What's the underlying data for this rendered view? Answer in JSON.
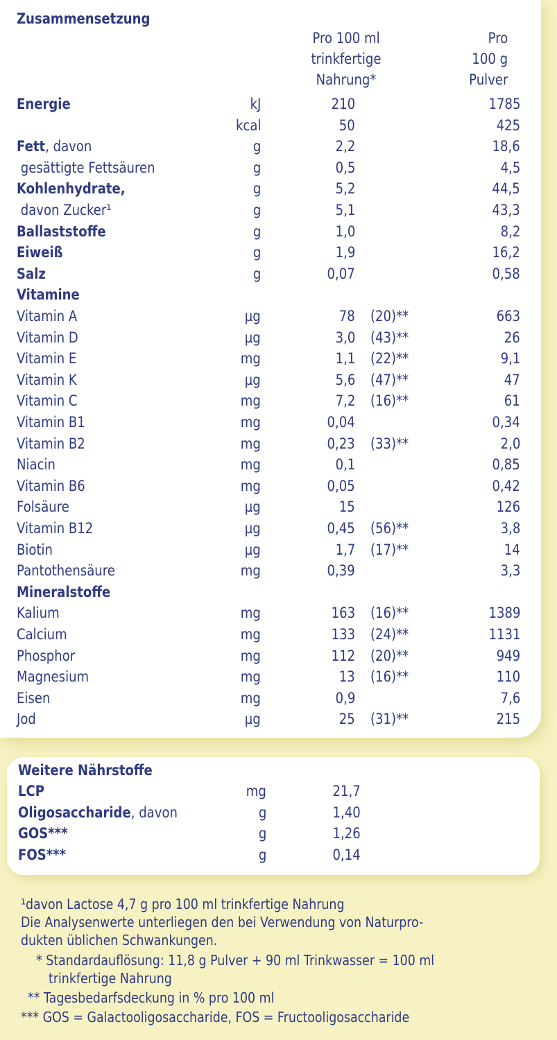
{
  "title": "Zusammensetzung",
  "columns": {
    "per_100ml": [
      "Pro 100 ml",
      "trinkfertige",
      "Nahrung*"
    ],
    "per_100g": [
      "Pro",
      "100 g",
      "Pulver"
    ]
  },
  "rows": [
    {
      "label": "Energie",
      "bold": "Energie",
      "rest": "",
      "unit": "kJ",
      "v1": "210",
      "pct": "",
      "v2": "1785"
    },
    {
      "label": "",
      "bold": "",
      "rest": "",
      "unit": "kcal",
      "v1": "50",
      "pct": "",
      "v2": "425"
    },
    {
      "label": "Fett, davon",
      "bold": "Fett",
      "rest": ", davon",
      "unit": "g",
      "v1": "2,2",
      "pct": "",
      "v2": "18,6"
    },
    {
      "label": "gesättigte Fettsäuren",
      "bold": "",
      "rest": " gesättigte Fettsäuren",
      "unit": "g",
      "v1": "0,5",
      "pct": "",
      "v2": "4,5"
    },
    {
      "label": "Kohlenhydrate,",
      "bold": "Kohlenhydrate,",
      "rest": "",
      "unit": "g",
      "v1": "5,2",
      "pct": "",
      "v2": "44,5"
    },
    {
      "label": "davon Zucker¹",
      "bold": "",
      "rest": " davon Zucker¹",
      "unit": "g",
      "v1": "5,1",
      "pct": "",
      "v2": "43,3"
    },
    {
      "label": "Ballaststoffe",
      "bold": "Ballaststoffe",
      "rest": "",
      "unit": "g",
      "v1": "1,0",
      "pct": "",
      "v2": "8,2"
    },
    {
      "label": "Eiweiß",
      "bold": "Eiweiß",
      "rest": "",
      "unit": "g",
      "v1": "1,9",
      "pct": "",
      "v2": "16,2"
    },
    {
      "label": "Salz",
      "bold": "Salz",
      "rest": "",
      "unit": "g",
      "v1": "0,07",
      "pct": "",
      "v2": "0,58"
    },
    {
      "label": "Vitamine",
      "bold": "Vitamine",
      "rest": "",
      "unit": "",
      "v1": "",
      "pct": "",
      "v2": ""
    },
    {
      "label": "Vitamin A",
      "bold": "",
      "rest": "Vitamin A",
      "unit": "µg",
      "v1": "78",
      "pct": "(20)**",
      "v2": "663"
    },
    {
      "label": "Vitamin D",
      "bold": "",
      "rest": "Vitamin D",
      "unit": "µg",
      "v1": "3,0",
      "pct": "(43)**",
      "v2": "26"
    },
    {
      "label": "Vitamin E",
      "bold": "",
      "rest": "Vitamin E",
      "unit": "mg",
      "v1": "1,1",
      "pct": "(22)**",
      "v2": "9,1"
    },
    {
      "label": "Vitamin K",
      "bold": "",
      "rest": "Vitamin K",
      "unit": "µg",
      "v1": "5,6",
      "pct": "(47)**",
      "v2": "47"
    },
    {
      "label": "Vitamin C",
      "bold": "",
      "rest": "Vitamin C",
      "unit": "mg",
      "v1": "7,2",
      "pct": "(16)**",
      "v2": "61"
    },
    {
      "label": "Vitamin B1",
      "bold": "",
      "rest": "Vitamin B1",
      "unit": "mg",
      "v1": "0,04",
      "pct": "",
      "v2": "0,34"
    },
    {
      "label": "Vitamin B2",
      "bold": "",
      "rest": "Vitamin B2",
      "unit": "mg",
      "v1": "0,23",
      "pct": "(33)**",
      "v2": "2,0"
    },
    {
      "label": "Niacin",
      "bold": "",
      "rest": "Niacin",
      "unit": "mg",
      "v1": "0,1",
      "pct": "",
      "v2": "0,85"
    },
    {
      "label": "Vitamin B6",
      "bold": "",
      "rest": "Vitamin B6",
      "unit": "mg",
      "v1": "0,05",
      "pct": "",
      "v2": "0,42"
    },
    {
      "label": "Folsäure",
      "bold": "",
      "rest": "Folsäure",
      "unit": "µg",
      "v1": "15",
      "pct": "",
      "v2": "126"
    },
    {
      "label": "Vitamin B12",
      "bold": "",
      "rest": "Vitamin B12",
      "unit": "µg",
      "v1": "0,45",
      "pct": "(56)**",
      "v2": "3,8"
    },
    {
      "label": "Biotin",
      "bold": "",
      "rest": "Biotin",
      "unit": "µg",
      "v1": "1,7",
      "pct": "(17)**",
      "v2": "14"
    },
    {
      "label": "Pantothensäure",
      "bold": "",
      "rest": "Pantothensäure",
      "unit": "mg",
      "v1": "0,39",
      "pct": "",
      "v2": "3,3"
    },
    {
      "label": "Mineralstoffe",
      "bold": "Mineralstoffe",
      "rest": "",
      "unit": "",
      "v1": "",
      "pct": "",
      "v2": ""
    },
    {
      "label": "Kalium",
      "bold": "",
      "rest": "Kalium",
      "unit": "mg",
      "v1": "163",
      "pct": "(16)**",
      "v2": "1389"
    },
    {
      "label": "Calcium",
      "bold": "",
      "rest": "Calcium",
      "unit": "mg",
      "v1": "133",
      "pct": "(24)**",
      "v2": "1131"
    },
    {
      "label": "Phosphor",
      "bold": "",
      "rest": "Phosphor",
      "unit": "mg",
      "v1": "112",
      "pct": "(20)**",
      "v2": "949"
    },
    {
      "label": "Magnesium",
      "bold": "",
      "rest": "Magnesium",
      "unit": "mg",
      "v1": "13",
      "pct": "(16)**",
      "v2": "110"
    },
    {
      "label": "Eisen",
      "bold": "",
      "rest": "Eisen",
      "unit": "mg",
      "v1": "0,9",
      "pct": "",
      "v2": "7,6"
    },
    {
      "label": "Jod",
      "bold": "",
      "rest": "Jod",
      "unit": "µg",
      "v1": "25",
      "pct": "(31)**",
      "v2": "215"
    }
  ],
  "extra": {
    "title": "Weitere Nährstoffe",
    "rows": [
      {
        "bold": "LCP",
        "rest": "",
        "unit": "mg",
        "v1": "21,7"
      },
      {
        "bold": "Oligosaccharide",
        "rest": ", davon",
        "unit": "g",
        "v1": "1,40"
      },
      {
        "bold": "GOS***",
        "rest": "",
        "unit": "g",
        "v1": "1,26"
      },
      {
        "bold": "FOS***",
        "rest": "",
        "unit": "g",
        "v1": "0,14"
      }
    ]
  },
  "footnotes": [
    "¹davon Lactose 4,7 g pro 100 ml trinkfertige Nahrung",
    "Die Analysenwerte unterliegen den bei Verwendung von Naturpro-",
    "dukten üblichen Schwankungen.",
    "* Standardauflösung: 11,8 g Pulver + 90 ml Trinkwasser = 100 ml",
    "trinkfertige Nahrung",
    "** Tagesbedarfsdeckung in % pro 100 ml",
    "*** GOS = Galactooligosaccharide, FOS = Fructooligosaccharide"
  ]
}
